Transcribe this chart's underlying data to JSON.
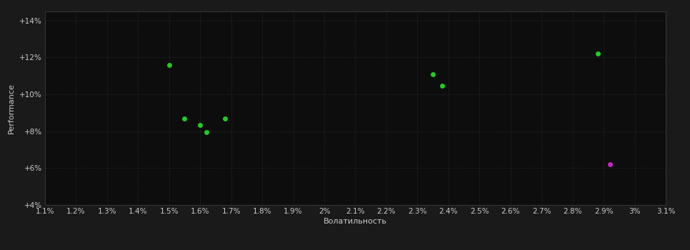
{
  "background_color": "#1a1a1a",
  "plot_bg_color": "#0d0d0d",
  "grid_color": "#303030",
  "xlabel": "Волатильность",
  "ylabel": "Performance",
  "xlim": [
    0.011,
    0.031
  ],
  "ylim": [
    0.04,
    0.145
  ],
  "xtick_values": [
    0.011,
    0.012,
    0.013,
    0.014,
    0.015,
    0.016,
    0.017,
    0.018,
    0.019,
    0.02,
    0.021,
    0.022,
    0.023,
    0.024,
    0.025,
    0.026,
    0.027,
    0.028,
    0.029,
    0.03,
    0.031
  ],
  "ytick_values": [
    0.04,
    0.06,
    0.08,
    0.1,
    0.12,
    0.14
  ],
  "green_points": [
    [
      0.015,
      0.116
    ],
    [
      0.0155,
      0.087
    ],
    [
      0.016,
      0.0835
    ],
    [
      0.0162,
      0.0795
    ],
    [
      0.0168,
      0.087
    ],
    [
      0.0235,
      0.111
    ],
    [
      0.0238,
      0.1045
    ],
    [
      0.0288,
      0.122
    ]
  ],
  "magenta_points": [
    [
      0.0292,
      0.062
    ]
  ],
  "dot_size": 25,
  "green_color": "#22cc22",
  "magenta_color": "#cc22cc",
  "tick_color": "#cccccc",
  "label_color": "#cccccc",
  "label_fontsize": 8,
  "tick_fontsize": 7.5
}
